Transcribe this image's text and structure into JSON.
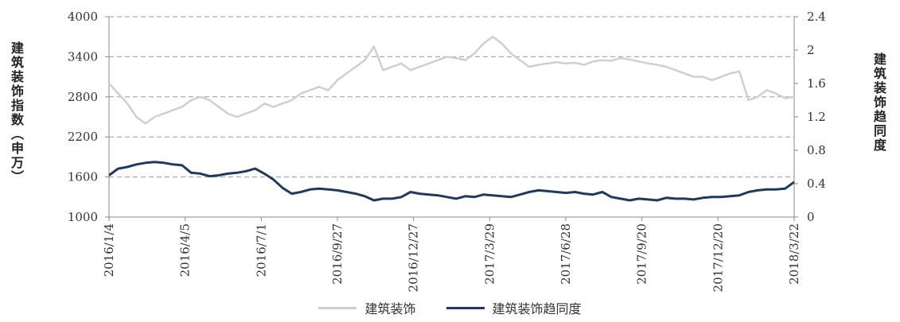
{
  "chart_data": {
    "type": "line",
    "title": "",
    "x_tick_labels": [
      "2016/1/4",
      "2016/4/5",
      "2016/7/1",
      "2016/9/27",
      "2016/12/27",
      "2017/3/29",
      "2017/6/28",
      "2017/9/20",
      "2017/12/20",
      "2018/3/22"
    ],
    "left_axis": {
      "label": "建筑装饰指数（申万）",
      "ylim": [
        1000,
        4000
      ],
      "ticks": [
        "1000",
        "1600",
        "2200",
        "2800",
        "3400",
        "4000"
      ]
    },
    "right_axis": {
      "label": "建筑装饰趋同度",
      "ylim": [
        0,
        2.4
      ],
      "ticks": [
        "0",
        "0.4",
        "0.8",
        "1.2",
        "1.6",
        "2",
        "2.4"
      ]
    },
    "grid": "horizontal dashed",
    "legend_position": "bottom",
    "series": [
      {
        "name": "建筑装饰",
        "axis": "left",
        "color": "#cfcfcf",
        "values": [
          3000,
          2850,
          2700,
          2500,
          2400,
          2500,
          2550,
          2600,
          2650,
          2750,
          2800,
          2750,
          2650,
          2550,
          2500,
          2550,
          2600,
          2700,
          2650,
          2700,
          2750,
          2850,
          2900,
          2950,
          2900,
          3050,
          3150,
          3250,
          3350,
          3550,
          3200,
          3250,
          3300,
          3200,
          3250,
          3300,
          3350,
          3400,
          3380,
          3350,
          3450,
          3600,
          3700,
          3600,
          3450,
          3350,
          3250,
          3280,
          3300,
          3320,
          3300,
          3310,
          3280,
          3330,
          3350,
          3340,
          3380,
          3360,
          3330,
          3300,
          3280,
          3250,
          3200,
          3150,
          3100,
          3100,
          3050,
          3100,
          3150,
          3180,
          2750,
          2800,
          2900,
          2850,
          2780,
          2800
        ]
      },
      {
        "name": "建筑装饰趋同度",
        "axis": "right",
        "color": "#1f3a5c",
        "values": [
          0.5,
          0.58,
          0.6,
          0.63,
          0.65,
          0.66,
          0.65,
          0.63,
          0.62,
          0.53,
          0.52,
          0.49,
          0.5,
          0.52,
          0.53,
          0.55,
          0.58,
          0.52,
          0.45,
          0.35,
          0.28,
          0.3,
          0.33,
          0.34,
          0.33,
          0.32,
          0.3,
          0.28,
          0.25,
          0.2,
          0.22,
          0.22,
          0.24,
          0.3,
          0.28,
          0.27,
          0.26,
          0.24,
          0.22,
          0.25,
          0.24,
          0.27,
          0.26,
          0.25,
          0.24,
          0.27,
          0.3,
          0.32,
          0.31,
          0.3,
          0.29,
          0.3,
          0.28,
          0.27,
          0.3,
          0.24,
          0.22,
          0.2,
          0.22,
          0.21,
          0.2,
          0.23,
          0.22,
          0.22,
          0.21,
          0.23,
          0.24,
          0.24,
          0.25,
          0.26,
          0.3,
          0.32,
          0.33,
          0.33,
          0.34,
          0.42
        ]
      }
    ]
  }
}
